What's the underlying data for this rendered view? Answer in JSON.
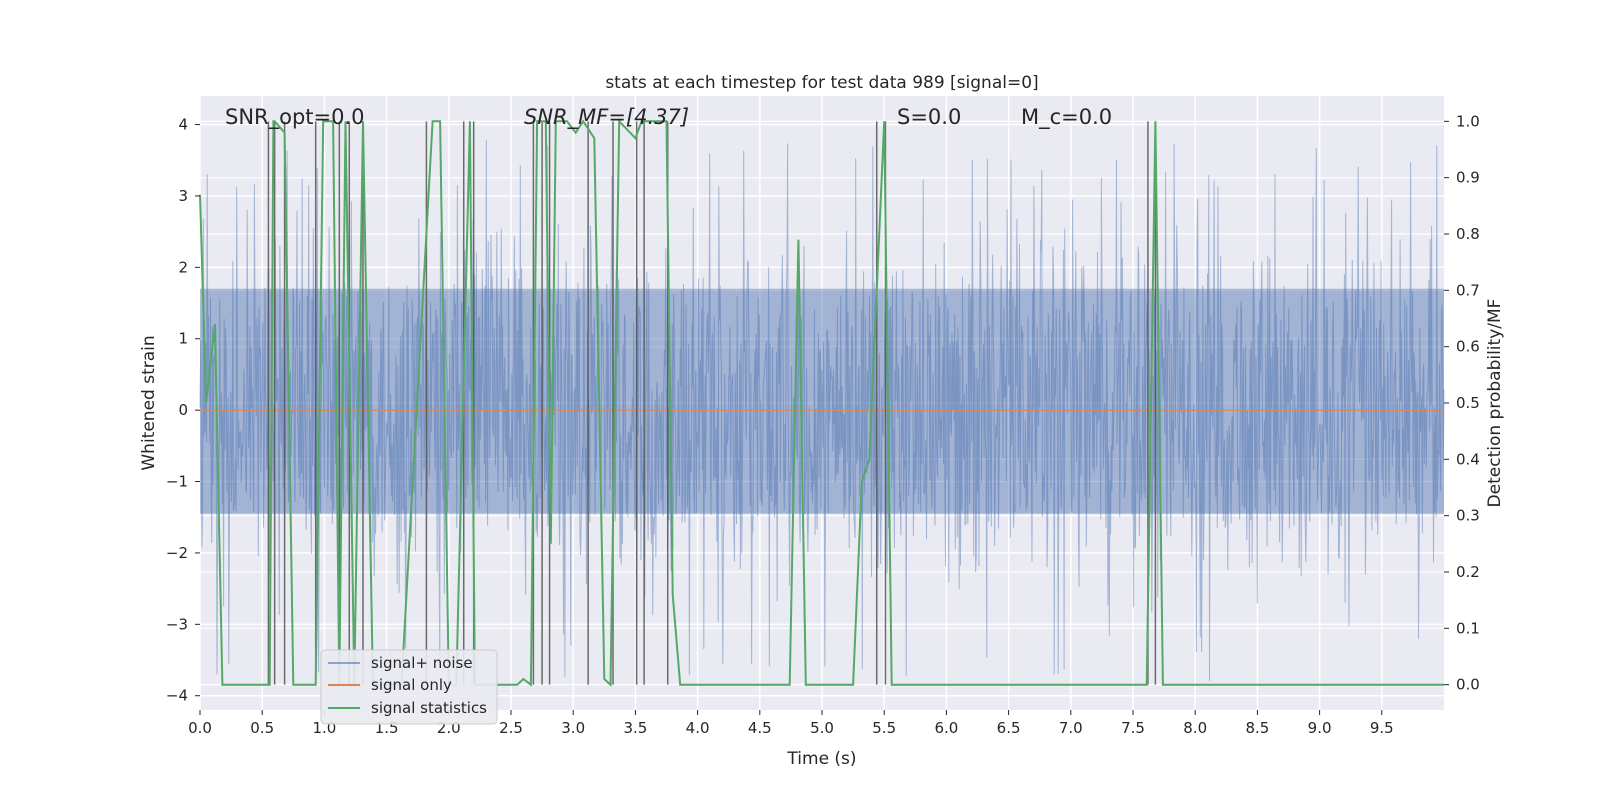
{
  "chart_data": {
    "type": "line",
    "title": "stats at each timestep for test data 989 [signal=0]",
    "xlabel": "Time (s)",
    "ylabel": "Whitened strain",
    "ylabel_right": "Detection probability/MF",
    "xlim": [
      0.0,
      10.0
    ],
    "ylim": [
      -4.2,
      4.4
    ],
    "ylim_right": [
      -0.045,
      1.045
    ],
    "x_ticks": [
      "0.0",
      "0.5",
      "1.0",
      "1.5",
      "2.0",
      "2.5",
      "3.0",
      "3.5",
      "4.0",
      "4.5",
      "5.0",
      "5.5",
      "6.0",
      "6.5",
      "7.0",
      "7.5",
      "8.0",
      "8.5",
      "9.0",
      "9.5"
    ],
    "y_ticks": [
      "4",
      "3",
      "2",
      "1",
      "0",
      "−1",
      "−2",
      "−3",
      "−4"
    ],
    "y_ticks_right": [
      "1.0",
      "0.9",
      "0.8",
      "0.7",
      "0.6",
      "0.5",
      "0.4",
      "0.3",
      "0.2",
      "0.1",
      "0.0"
    ],
    "grid": true,
    "legend_position": "lower-left",
    "annotations": [
      {
        "text": "SNR_opt=0.0"
      },
      {
        "text": "SNR_MF=[4.37]"
      },
      {
        "text": "S=0.0"
      },
      {
        "text": "M_c=0.0"
      }
    ],
    "series": [
      {
        "name": "signal+ noise",
        "color": "#4c72b0",
        "noise_band": {
          "core_min": -1.45,
          "core_max": 1.7
        }
      },
      {
        "name": "signal only",
        "color": "#dd8452",
        "x": [
          0,
          10
        ],
        "y": [
          0,
          0
        ]
      },
      {
        "name": "signal statistics",
        "color": "#55a868",
        "x": [
          0.0,
          0.05,
          0.12,
          0.18,
          0.56,
          0.59,
          0.6,
          0.68,
          0.75,
          0.93,
          0.99,
          1.07,
          1.12,
          1.17,
          1.24,
          1.31,
          1.39,
          1.5,
          1.62,
          1.87,
          1.93,
          2.0,
          2.06,
          2.17,
          2.21,
          2.26,
          2.55,
          2.6,
          2.66,
          2.71,
          2.78,
          2.82,
          2.86,
          2.95,
          3.02,
          3.08,
          3.17,
          3.25,
          3.3,
          3.37,
          3.5,
          3.55,
          3.58,
          3.66,
          3.75,
          3.8,
          3.86,
          4.74,
          4.81,
          4.87,
          5.0,
          5.12,
          5.25,
          5.32,
          5.38,
          5.5,
          5.56,
          7.61,
          7.68,
          7.74,
          10.0
        ],
        "y": [
          0.87,
          0.5,
          0.64,
          0.0,
          0.0,
          1.0,
          1.0,
          0.98,
          0.0,
          0.0,
          1.0,
          1.0,
          0.0,
          1.0,
          0.0,
          1.0,
          0.0,
          0.0,
          0.0,
          1.0,
          1.0,
          0.0,
          0.0,
          1.0,
          0.0,
          0.0,
          0.0,
          0.01,
          0.0,
          1.0,
          1.0,
          0.25,
          1.0,
          1.0,
          0.98,
          1.0,
          0.97,
          0.01,
          0.0,
          1.0,
          0.97,
          1.0,
          1.0,
          1.0,
          1.0,
          0.16,
          0.0,
          0.0,
          0.79,
          0.0,
          0.0,
          0.0,
          0.0,
          0.36,
          0.4,
          1.0,
          0.0,
          0.0,
          1.0,
          0.0,
          0.0
        ]
      },
      {
        "name": "",
        "color": "#555555",
        "vlines_x": [
          0.55,
          0.6,
          0.68,
          0.93,
          1.12,
          1.2,
          1.31,
          1.82,
          2.12,
          2.2,
          2.68,
          2.75,
          2.81,
          3.12,
          3.32,
          3.51,
          3.57,
          3.76,
          5.44,
          5.51,
          7.62,
          7.68
        ]
      }
    ]
  }
}
